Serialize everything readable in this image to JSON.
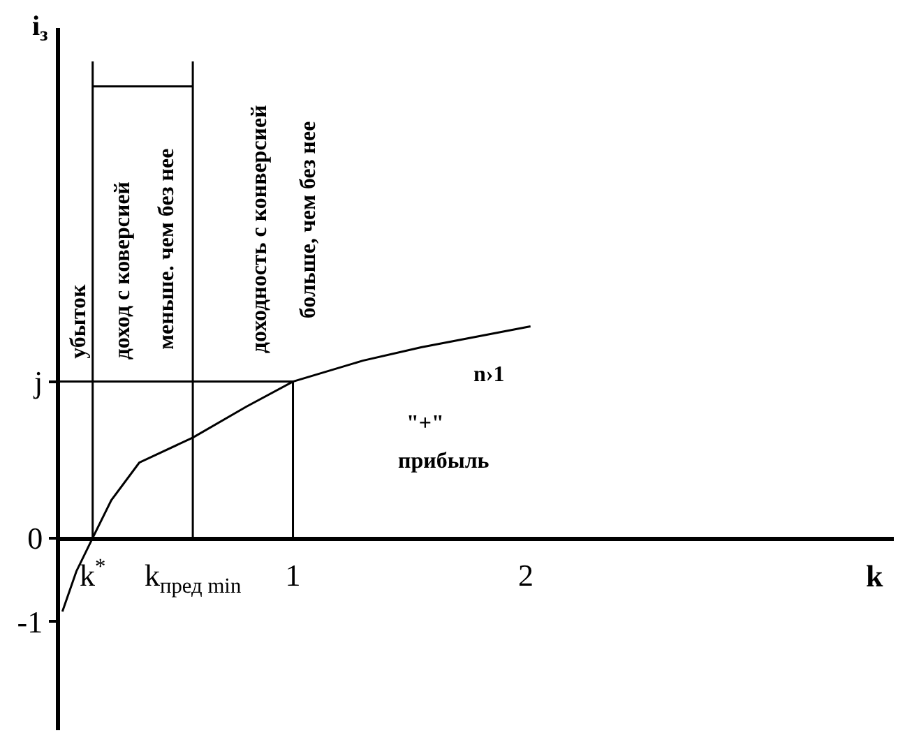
{
  "chart_data": {
    "type": "line",
    "xlabel": "k",
    "ylabel": "i$_{з}$",
    "xlim": [
      0,
      3.58
    ],
    "ylim": [
      -2.3,
      6.1
    ],
    "xticks": [
      {
        "value": 0.14,
        "label": "k$^{*}$"
      },
      {
        "value": 0.57,
        "label": "k$_{пред min}$"
      },
      1,
      2
    ],
    "yticks": [
      -1,
      0,
      {
        "value": 1.87,
        "label": "j"
      }
    ],
    "series": [
      {
        "color": "#000000",
        "x": [
          0.01,
          0.07,
          0.14,
          0.22,
          0.34,
          0.57,
          0.8,
          1,
          1.3,
          1.55,
          2.02
        ],
        "values": [
          -0.88,
          -0.4,
          0,
          0.45,
          0.9,
          1.2,
          1.57,
          1.87,
          2.12,
          2.28,
          2.53
        ]
      },
      {
        "color": "#000000",
        "x": [
          0,
          1,
          1
        ],
        "values": [
          1.87,
          1.87,
          0
        ]
      },
      {
        "color": "#000000",
        "x": [
          0.14,
          0.14
        ],
        "values": [
          0,
          5.7
        ]
      },
      {
        "color": "#000000",
        "x": [
          0.57,
          0.57
        ],
        "values": [
          0,
          5.7
        ]
      },
      {
        "color": "#000000",
        "x": [
          0.14,
          0.57
        ],
        "values": [
          5.4,
          5.4
        ]
      }
    ],
    "annotations": [
      "убыток",
      "доход с коверсией",
      "меньше. чем без нее",
      "доходность с конверсией",
      "больше, чем без нее",
      "n›1",
      "\"+\"",
      "прибыль"
    ],
    "grid": false,
    "marker": "none"
  }
}
